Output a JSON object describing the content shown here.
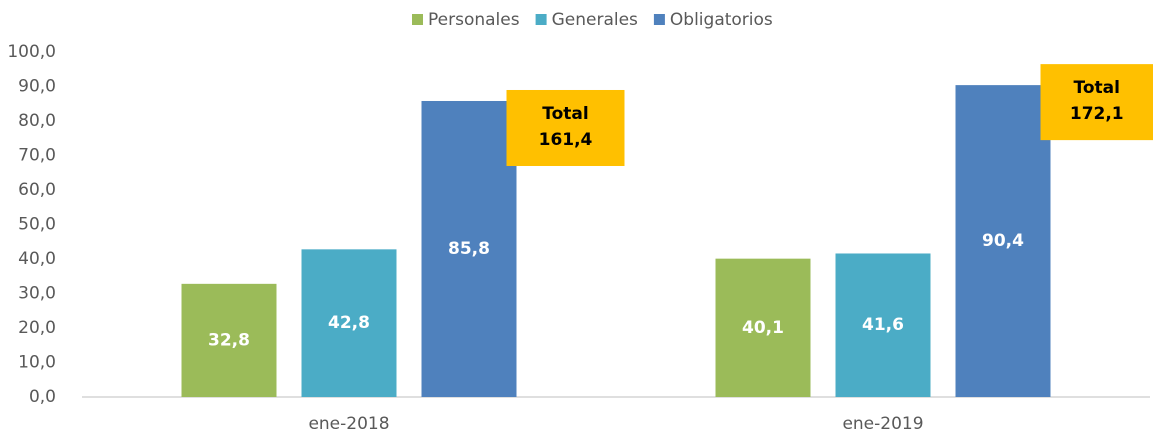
{
  "chart_data": {
    "type": "bar",
    "categories": [
      "ene-2018",
      "ene-2019"
    ],
    "series": [
      {
        "name": "Personales",
        "color": "#9bbb59",
        "values": [
          32.8,
          40.1
        ],
        "value_labels": [
          "32,8",
          "40,1"
        ]
      },
      {
        "name": "Generales",
        "color": "#4bacc6",
        "values": [
          42.8,
          41.6
        ],
        "value_labels": [
          "42,8",
          "41,6"
        ]
      },
      {
        "name": "Obligatorios",
        "color": "#4f81bd",
        "values": [
          85.8,
          90.4
        ],
        "value_labels": [
          "85,8",
          "90,4"
        ]
      }
    ],
    "annotations": [
      {
        "title": "Total",
        "text": "161,4"
      },
      {
        "title": "Total",
        "text": "172,1"
      }
    ],
    "annotation_color": "#ffc000",
    "ylim": [
      0,
      100
    ],
    "yticks": [
      {
        "value": 0,
        "label": "0,0"
      },
      {
        "value": 10,
        "label": "10,0"
      },
      {
        "value": 20,
        "label": "20,0"
      },
      {
        "value": 30,
        "label": "30,0"
      },
      {
        "value": 40,
        "label": "40,0"
      },
      {
        "value": 50,
        "label": "50,0"
      },
      {
        "value": 60,
        "label": "60,0"
      },
      {
        "value": 70,
        "label": "70,0"
      },
      {
        "value": 80,
        "label": "80,0"
      },
      {
        "value": 90,
        "label": "90,0"
      },
      {
        "value": 100,
        "label": "100,0"
      }
    ],
    "legend": "top"
  }
}
